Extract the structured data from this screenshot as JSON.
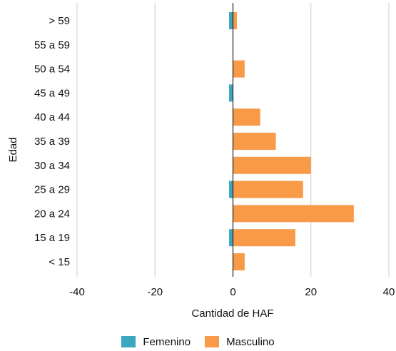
{
  "chart_data": {
    "type": "bar",
    "orientation": "horizontal",
    "stacked": "diverging",
    "categories": [
      "> 59",
      "55 a 59",
      "50 a 54",
      "45 a 49",
      "40 a 44",
      "35 a 39",
      "30 a 34",
      "25 a 29",
      "20 a 24",
      "15 a 19",
      "< 15"
    ],
    "series": [
      {
        "name": "Femenino",
        "color": "#3aa6c0",
        "values": [
          -1,
          0,
          0,
          -1,
          0,
          0,
          0,
          -1,
          0,
          -1,
          0
        ]
      },
      {
        "name": "Masculino",
        "color": "#f99a48",
        "values": [
          1,
          0,
          3,
          0,
          7,
          11,
          20,
          18,
          31,
          16,
          3
        ]
      }
    ],
    "xlabel": "Cantidad de HAF",
    "ylabel": "Edad",
    "xlim": [
      -40,
      40
    ],
    "xticks": [
      "-40",
      "-20",
      "0",
      "20",
      "40"
    ],
    "grid": "vertical",
    "legend_position": "bottom"
  }
}
